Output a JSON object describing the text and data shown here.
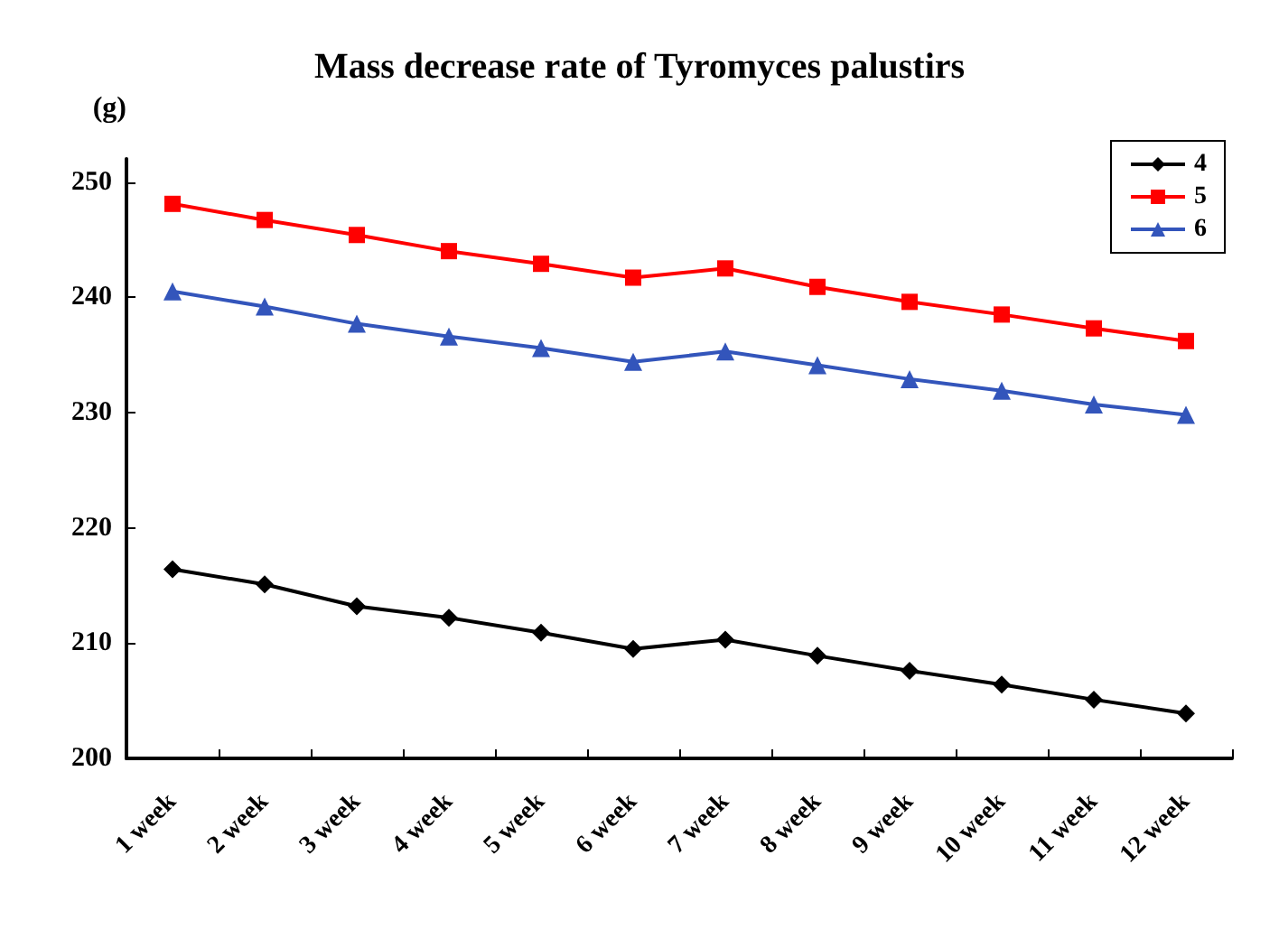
{
  "chart_data": {
    "type": "line",
    "title": "Mass decrease rate of Tyromyces palustirs",
    "ylabel": "(g)",
    "categories": [
      "1 week",
      "2 week",
      "3 week",
      "4 week",
      "5 week",
      "6 week",
      "7 week",
      "8 week",
      "9 week",
      "10 week",
      "11 week",
      "12 week"
    ],
    "series": [
      {
        "name": "4",
        "color": "#000000",
        "marker": "diamond",
        "values": [
          216.4,
          215.1,
          213.2,
          212.2,
          210.9,
          209.5,
          210.3,
          208.9,
          207.6,
          206.4,
          205.1,
          203.9
        ]
      },
      {
        "name": "5",
        "color": "#ff0000",
        "marker": "square",
        "values": [
          248.1,
          246.7,
          245.4,
          244.0,
          242.9,
          241.7,
          242.5,
          240.9,
          239.6,
          238.5,
          237.3,
          236.2
        ]
      },
      {
        "name": "6",
        "color": "#3355bb",
        "marker": "triangle",
        "values": [
          240.5,
          239.2,
          237.7,
          236.6,
          235.6,
          234.4,
          235.3,
          234.1,
          232.9,
          231.9,
          230.7,
          229.8
        ]
      }
    ],
    "ylim": [
      200,
      252
    ],
    "yticks": [
      200,
      210,
      220,
      230,
      240,
      250
    ],
    "grid": false,
    "legend": "top right"
  }
}
